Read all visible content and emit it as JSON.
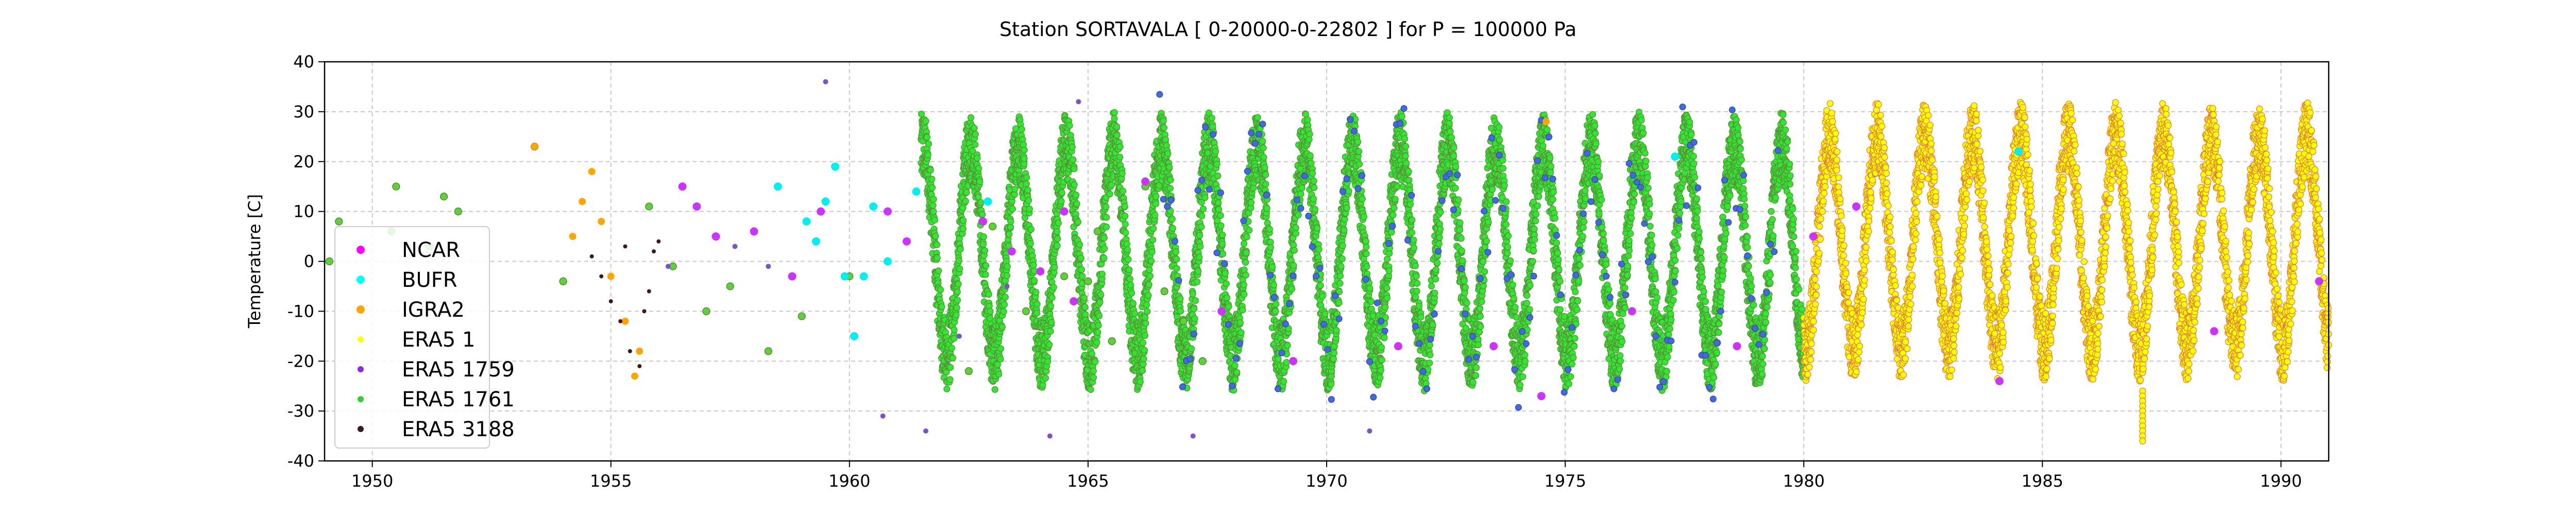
{
  "chart_data": {
    "type": "scatter",
    "title": "Station  SORTAVALA [ 0-20000-0-22802 ]  for P = 100000 Pa",
    "xlabel": "",
    "ylabel": "Temperature [C]",
    "xlim": [
      1949.0,
      1991.0
    ],
    "ylim": [
      -40,
      40
    ],
    "xticks": [
      1950,
      1955,
      1960,
      1965,
      1970,
      1975,
      1980,
      1985,
      1990
    ],
    "yticks": [
      40,
      30,
      20,
      10,
      0,
      -10,
      -20,
      -30,
      -40
    ],
    "grid": true,
    "legend_position": "left",
    "series": [
      {
        "name": "NCAR",
        "color": "#ff00ff",
        "points": [
          [
            1956.5,
            15
          ],
          [
            1956.8,
            11
          ],
          [
            1957.2,
            5
          ],
          [
            1958.0,
            6
          ],
          [
            1958.8,
            -3
          ],
          [
            1959.4,
            10
          ],
          [
            1960.8,
            10
          ],
          [
            1961.2,
            4
          ],
          [
            1962.8,
            8
          ],
          [
            1963.4,
            2
          ],
          [
            1964.0,
            -2
          ],
          [
            1964.5,
            10
          ],
          [
            1964.7,
            -8
          ],
          [
            1966.2,
            16
          ],
          [
            1967.8,
            -10
          ],
          [
            1969.3,
            -20
          ],
          [
            1971.5,
            -17
          ],
          [
            1973.5,
            -17
          ],
          [
            1974.5,
            -27
          ],
          [
            1976.4,
            -10
          ],
          [
            1978.6,
            -17
          ],
          [
            1980.2,
            5
          ],
          [
            1981.1,
            11
          ],
          [
            1984.1,
            -24
          ],
          [
            1988.6,
            -14
          ],
          [
            1990.8,
            -4
          ]
        ]
      },
      {
        "name": "BUFR",
        "color": "#00ffff",
        "points": [
          [
            1959.1,
            8
          ],
          [
            1959.3,
            4
          ],
          [
            1959.5,
            12
          ],
          [
            1959.7,
            19
          ],
          [
            1959.9,
            -3
          ],
          [
            1960.1,
            -15
          ],
          [
            1960.3,
            -3
          ],
          [
            1960.5,
            11
          ],
          [
            1960.8,
            0
          ],
          [
            1961.4,
            14
          ],
          [
            1958.5,
            15
          ],
          [
            1962.9,
            12
          ],
          [
            1977.3,
            21
          ],
          [
            1984.5,
            22
          ]
        ]
      },
      {
        "name": "IGRA2",
        "color": "#ffa500",
        "points": [
          [
            1953.4,
            23
          ],
          [
            1954.2,
            5
          ],
          [
            1954.4,
            12
          ],
          [
            1954.6,
            18
          ],
          [
            1954.8,
            8
          ],
          [
            1955.0,
            -3
          ],
          [
            1955.3,
            -12
          ],
          [
            1955.5,
            -23
          ],
          [
            1955.6,
            -18
          ],
          [
            1974.6,
            28
          ]
        ]
      },
      {
        "name": "ERA5 1",
        "color": "#ffff00",
        "band": [
          1980.0,
          1991.0
        ],
        "offset": 0.12
      },
      {
        "name": "ERA5 1759",
        "color": "#8a2be2",
        "points": [
          [
            1959.5,
            36
          ],
          [
            1961.6,
            -34
          ],
          [
            1964.2,
            -35
          ],
          [
            1964.8,
            32
          ],
          [
            1967.2,
            -35
          ],
          [
            1970.9,
            -34
          ],
          [
            1956.2,
            -1
          ],
          [
            1957.6,
            3
          ],
          [
            1958.3,
            -1
          ],
          [
            1960.7,
            -31
          ],
          [
            1962.3,
            -15
          ],
          [
            1963.3,
            -5
          ]
        ]
      },
      {
        "name": "ERA5 1761",
        "color": "#32cd32",
        "band": [
          1961.5,
          1980.0
        ],
        "offset": 0.0
      },
      {
        "name": "ERA5 3188",
        "color": "#3b1a1a",
        "points": [
          [
            1954.6,
            1
          ],
          [
            1954.8,
            -3
          ],
          [
            1955.0,
            -8
          ],
          [
            1955.2,
            -12
          ],
          [
            1955.4,
            -18
          ],
          [
            1955.6,
            -21
          ],
          [
            1955.7,
            -10
          ],
          [
            1955.8,
            -6
          ],
          [
            1955.9,
            2
          ],
          [
            1956.0,
            4
          ],
          [
            1955.3,
            3
          ]
        ]
      }
    ],
    "scattered_1761": [
      [
        1949.1,
        0
      ],
      [
        1949.3,
        8
      ],
      [
        1950.5,
        15
      ],
      [
        1950.4,
        6
      ],
      [
        1951.2,
        3
      ],
      [
        1951.5,
        13
      ],
      [
        1951.8,
        10
      ],
      [
        1953.4,
        23
      ],
      [
        1954.0,
        -4
      ],
      [
        1955.8,
        11
      ],
      [
        1956.3,
        -1
      ],
      [
        1957.0,
        -10
      ],
      [
        1957.5,
        -5
      ],
      [
        1958.3,
        -18
      ],
      [
        1959.0,
        -11
      ],
      [
        1960.0,
        -3
      ],
      [
        1962.5,
        -22
      ],
      [
        1963.0,
        7
      ],
      [
        1963.7,
        -10
      ],
      [
        1964.5,
        -3
      ],
      [
        1965.0,
        -4
      ],
      [
        1965.2,
        6
      ],
      [
        1965.5,
        -16
      ],
      [
        1966.2,
        15
      ],
      [
        1966.6,
        -6
      ],
      [
        1967.0,
        -12
      ],
      [
        1967.4,
        -20
      ]
    ]
  },
  "legend": {
    "items": [
      {
        "label": "NCAR",
        "color": "#ff00ff"
      },
      {
        "label": "BUFR",
        "color": "#00ffff"
      },
      {
        "label": "IGRA2",
        "color": "#ffa500"
      },
      {
        "label": "ERA5 1",
        "color": "#ffff00"
      },
      {
        "label": "ERA5 1759",
        "color": "#8a2be2"
      },
      {
        "label": "ERA5 1761",
        "color": "#32cd32"
      },
      {
        "label": "ERA5 3188",
        "color": "#3b1a1a"
      }
    ]
  }
}
